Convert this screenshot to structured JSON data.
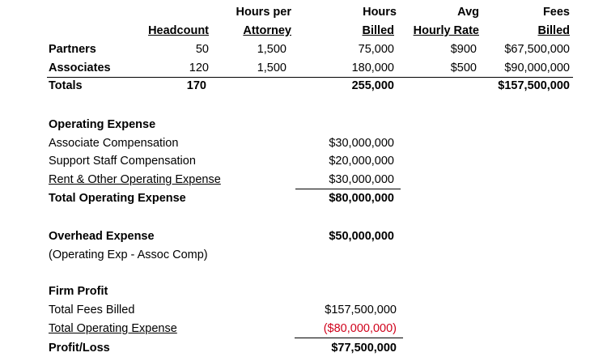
{
  "billing_table": {
    "headers": {
      "headcount": "Headcount",
      "hours_per_attorney_1": "Hours per",
      "hours_per_attorney_2": "Attorney",
      "hours_billed_1": "Hours",
      "hours_billed_2": "Billed",
      "avg_rate_1": "Avg",
      "avg_rate_2": "Hourly Rate",
      "fees_billed_1": "Fees",
      "fees_billed_2": "Billed"
    },
    "rows": [
      {
        "label": "Partners",
        "headcount": "50",
        "hours_per_attorney": "1,500",
        "hours_billed": "75,000",
        "avg_rate": "$900",
        "fees_billed": "$67,500,000"
      },
      {
        "label": "Associates",
        "headcount": "120",
        "hours_per_attorney": "1,500",
        "hours_billed": "180,000",
        "avg_rate": "$500",
        "fees_billed": "$90,000,000"
      }
    ],
    "totals": {
      "label": "Totals",
      "headcount": "170",
      "hours_billed": "255,000",
      "fees_billed": "$157,500,000"
    }
  },
  "operating_expense": {
    "title": "Operating Expense",
    "items": [
      {
        "label": "Associate Compensation",
        "value": "$30,000,000"
      },
      {
        "label": "Support Staff Compensation",
        "value": "$20,000,000"
      },
      {
        "label": "Rent & Other Operating Expense",
        "value": "$30,000,000"
      }
    ],
    "total_label": "Total Operating Expense",
    "total_value": "$80,000,000"
  },
  "overhead_expense": {
    "title": "Overhead Expense",
    "note": "(Operating Exp - Assoc Comp)",
    "value": "$50,000,000"
  },
  "firm_profit": {
    "title": "Firm Profit",
    "fees_label": "Total Fees Billed",
    "fees_value": "$157,500,000",
    "opex_label": "Total Operating Expense",
    "opex_value": "($80,000,000)",
    "profit_label": "Profit/Loss",
    "profit_value": "$77,500,000",
    "negative_color": "#d0021b"
  }
}
